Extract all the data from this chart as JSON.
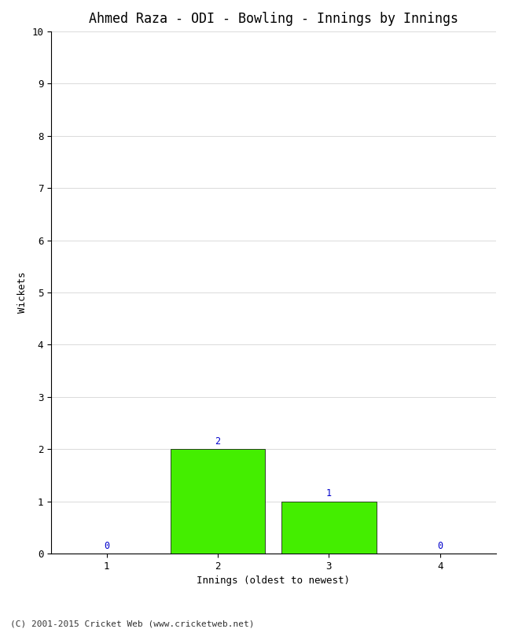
{
  "title": "Ahmed Raza - ODI - Bowling - Innings by Innings",
  "xlabel": "Innings (oldest to newest)",
  "ylabel": "Wickets",
  "categories": [
    1,
    2,
    3,
    4
  ],
  "values": [
    0,
    2,
    1,
    0
  ],
  "bar_color": "#44ee00",
  "bar_edge_color": "#000000",
  "ylim": [
    0,
    10
  ],
  "yticks": [
    0,
    1,
    2,
    3,
    4,
    5,
    6,
    7,
    8,
    9,
    10
  ],
  "xlim": [
    0.5,
    4.5
  ],
  "xticks": [
    1,
    2,
    3,
    4
  ],
  "label_color": "#0000cc",
  "label_fontsize": 8.5,
  "title_fontsize": 12,
  "axis_label_fontsize": 9,
  "tick_fontsize": 9,
  "footer": "(C) 2001-2015 Cricket Web (www.cricketweb.net)",
  "footer_fontsize": 8,
  "background_color": "#ffffff",
  "bar_width": 0.85,
  "grid_color": "#cccccc",
  "spine_color": "#000000"
}
